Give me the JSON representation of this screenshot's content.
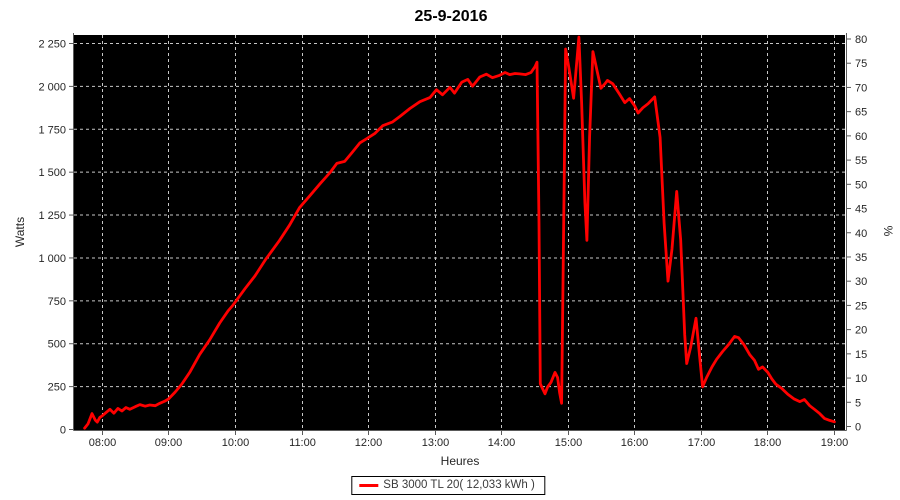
{
  "window": {
    "title": "25-9-2016"
  },
  "chart_data": {
    "type": "line",
    "title": "25-9-2016",
    "xlabel": "Heures",
    "ylabel_left": "Watts",
    "ylabel_right": "%",
    "grid": true,
    "plot_background": "#000000",
    "grid_color": "#c8c8c8",
    "axis_color": "#5a5a5a",
    "legend_position": "bottom",
    "x_axis": {
      "min_hour": 7.58,
      "max_hour": 19.17,
      "ticks": [
        {
          "v": 8,
          "label": "08:00"
        },
        {
          "v": 9,
          "label": "09:00"
        },
        {
          "v": 10,
          "label": "10:00"
        },
        {
          "v": 11,
          "label": "11:00"
        },
        {
          "v": 12,
          "label": "12:00"
        },
        {
          "v": 13,
          "label": "13:00"
        },
        {
          "v": 14,
          "label": "14:00"
        },
        {
          "v": 15,
          "label": "15:00"
        },
        {
          "v": 16,
          "label": "16:00"
        },
        {
          "v": 17,
          "label": "17:00"
        },
        {
          "v": 18,
          "label": "18:00"
        },
        {
          "v": 19,
          "label": "19:00"
        }
      ]
    },
    "y_axis_left": {
      "min": 0,
      "max": 2300,
      "ticks": [
        {
          "v": 0,
          "label": "0"
        },
        {
          "v": 250,
          "label": "250"
        },
        {
          "v": 500,
          "label": "500"
        },
        {
          "v": 750,
          "label": "750"
        },
        {
          "v": 1000,
          "label": "1 000"
        },
        {
          "v": 1250,
          "label": "1 250"
        },
        {
          "v": 1500,
          "label": "1 500"
        },
        {
          "v": 1750,
          "label": "1 750"
        },
        {
          "v": 2000,
          "label": "2 000"
        },
        {
          "v": 2250,
          "label": "2 250"
        }
      ]
    },
    "y_axis_right": {
      "min": 0,
      "max": 81,
      "ticks": [
        {
          "v": 0,
          "label": "0"
        },
        {
          "v": 5,
          "label": "5"
        },
        {
          "v": 10,
          "label": "10"
        },
        {
          "v": 15,
          "label": "15"
        },
        {
          "v": 20,
          "label": "20"
        },
        {
          "v": 25,
          "label": "25"
        },
        {
          "v": 30,
          "label": "30"
        },
        {
          "v": 35,
          "label": "35"
        },
        {
          "v": 40,
          "label": "40"
        },
        {
          "v": 45,
          "label": "45"
        },
        {
          "v": 50,
          "label": "50"
        },
        {
          "v": 55,
          "label": "55"
        },
        {
          "v": 60,
          "label": "60"
        },
        {
          "v": 65,
          "label": "65"
        },
        {
          "v": 70,
          "label": "70"
        },
        {
          "v": 75,
          "label": "75"
        },
        {
          "v": 80,
          "label": "80"
        }
      ]
    },
    "series": [
      {
        "name": "SB 3000 TL 20( 12,033 kWh )",
        "color": "#ff0000",
        "axis": "left",
        "points": [
          [
            7.74,
            5
          ],
          [
            7.79,
            30
          ],
          [
            7.85,
            90
          ],
          [
            7.9,
            52
          ],
          [
            7.93,
            40
          ],
          [
            7.97,
            68
          ],
          [
            8.0,
            75
          ],
          [
            8.06,
            95
          ],
          [
            8.12,
            115
          ],
          [
            8.18,
            92
          ],
          [
            8.24,
            120
          ],
          [
            8.3,
            105
          ],
          [
            8.36,
            125
          ],
          [
            8.42,
            115
          ],
          [
            8.5,
            130
          ],
          [
            8.57,
            142
          ],
          [
            8.65,
            133
          ],
          [
            8.72,
            140
          ],
          [
            8.8,
            136
          ],
          [
            8.87,
            150
          ],
          [
            8.95,
            163
          ],
          [
            9.0,
            175
          ],
          [
            9.1,
            215
          ],
          [
            9.2,
            262
          ],
          [
            9.32,
            330
          ],
          [
            9.47,
            435
          ],
          [
            9.62,
            520
          ],
          [
            9.77,
            618
          ],
          [
            9.9,
            690
          ],
          [
            9.97,
            722
          ],
          [
            10.15,
            818
          ],
          [
            10.3,
            892
          ],
          [
            10.46,
            988
          ],
          [
            10.67,
            1100
          ],
          [
            10.82,
            1188
          ],
          [
            10.97,
            1290
          ],
          [
            11.13,
            1362
          ],
          [
            11.28,
            1430
          ],
          [
            11.43,
            1495
          ],
          [
            11.53,
            1548
          ],
          [
            11.65,
            1560
          ],
          [
            11.76,
            1612
          ],
          [
            11.88,
            1668
          ],
          [
            11.98,
            1692
          ],
          [
            12.1,
            1722
          ],
          [
            12.22,
            1768
          ],
          [
            12.37,
            1790
          ],
          [
            12.48,
            1822
          ],
          [
            12.63,
            1868
          ],
          [
            12.78,
            1908
          ],
          [
            12.93,
            1932
          ],
          [
            13.03,
            1978
          ],
          [
            13.12,
            1948
          ],
          [
            13.23,
            1992
          ],
          [
            13.3,
            1958
          ],
          [
            13.41,
            2022
          ],
          [
            13.5,
            2038
          ],
          [
            13.57,
            1998
          ],
          [
            13.68,
            2052
          ],
          [
            13.78,
            2068
          ],
          [
            13.87,
            2048
          ],
          [
            13.98,
            2062
          ],
          [
            14.06,
            2078
          ],
          [
            14.13,
            2066
          ],
          [
            14.21,
            2072
          ],
          [
            14.28,
            2070
          ],
          [
            14.37,
            2066
          ],
          [
            14.45,
            2078
          ],
          [
            14.51,
            2112
          ],
          [
            14.54,
            2138
          ],
          [
            14.57,
            1200
          ],
          [
            14.59,
            263
          ],
          [
            14.66,
            205
          ],
          [
            14.7,
            245
          ],
          [
            14.75,
            272
          ],
          [
            14.81,
            330
          ],
          [
            14.85,
            300
          ],
          [
            14.88,
            212
          ],
          [
            14.91,
            150
          ],
          [
            14.95,
            1500
          ],
          [
            14.97,
            2215
          ],
          [
            15.02,
            2105
          ],
          [
            15.09,
            1928
          ],
          [
            15.14,
            2150
          ],
          [
            15.17,
            2285
          ],
          [
            15.21,
            1905
          ],
          [
            15.26,
            1320
          ],
          [
            15.29,
            1100
          ],
          [
            15.33,
            1705
          ],
          [
            15.38,
            2200
          ],
          [
            15.44,
            2092
          ],
          [
            15.5,
            1986
          ],
          [
            15.56,
            2012
          ],
          [
            15.6,
            2032
          ],
          [
            15.68,
            2012
          ],
          [
            15.78,
            1952
          ],
          [
            15.86,
            1902
          ],
          [
            15.93,
            1926
          ],
          [
            16.01,
            1882
          ],
          [
            16.06,
            1842
          ],
          [
            16.13,
            1872
          ],
          [
            16.21,
            1896
          ],
          [
            16.31,
            1936
          ],
          [
            16.39,
            1700
          ],
          [
            16.45,
            1200
          ],
          [
            16.51,
            862
          ],
          [
            16.57,
            1050
          ],
          [
            16.64,
            1385
          ],
          [
            16.7,
            1100
          ],
          [
            16.76,
            550
          ],
          [
            16.79,
            382
          ],
          [
            16.85,
            478
          ],
          [
            16.93,
            645
          ],
          [
            16.99,
            400
          ],
          [
            17.03,
            246
          ],
          [
            17.09,
            300
          ],
          [
            17.17,
            362
          ],
          [
            17.24,
            406
          ],
          [
            17.33,
            452
          ],
          [
            17.42,
            492
          ],
          [
            17.51,
            540
          ],
          [
            17.57,
            532
          ],
          [
            17.65,
            492
          ],
          [
            17.74,
            432
          ],
          [
            17.81,
            400
          ],
          [
            17.87,
            348
          ],
          [
            17.93,
            362
          ],
          [
            18.01,
            330
          ],
          [
            18.07,
            292
          ],
          [
            18.13,
            262
          ],
          [
            18.22,
            236
          ],
          [
            18.31,
            202
          ],
          [
            18.4,
            176
          ],
          [
            18.49,
            160
          ],
          [
            18.56,
            172
          ],
          [
            18.64,
            136
          ],
          [
            18.71,
            115
          ],
          [
            18.79,
            90
          ],
          [
            18.86,
            62
          ],
          [
            18.94,
            50
          ],
          [
            19.01,
            42
          ]
        ]
      }
    ],
    "legend": {
      "label": "SB 3000 TL 20( 12,033 kWh )"
    }
  }
}
